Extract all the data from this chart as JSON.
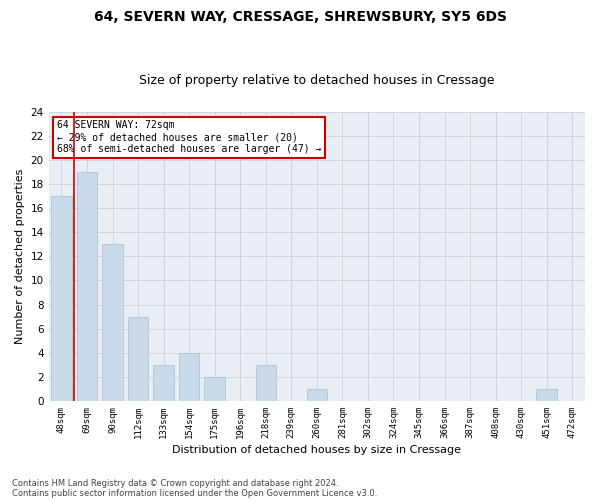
{
  "title": "64, SEVERN WAY, CRESSAGE, SHREWSBURY, SY5 6DS",
  "subtitle": "Size of property relative to detached houses in Cressage",
  "xlabel": "Distribution of detached houses by size in Cressage",
  "ylabel": "Number of detached properties",
  "categories": [
    "48sqm",
    "69sqm",
    "90sqm",
    "112sqm",
    "133sqm",
    "154sqm",
    "175sqm",
    "196sqm",
    "218sqm",
    "239sqm",
    "260sqm",
    "281sqm",
    "302sqm",
    "324sqm",
    "345sqm",
    "366sqm",
    "387sqm",
    "408sqm",
    "430sqm",
    "451sqm",
    "472sqm"
  ],
  "values": [
    17,
    19,
    13,
    7,
    3,
    4,
    2,
    0,
    3,
    0,
    1,
    0,
    0,
    0,
    0,
    0,
    0,
    0,
    0,
    1,
    0
  ],
  "bar_color": "#c9daea",
  "bar_edgecolor": "#a8c0d4",
  "ylim": [
    0,
    24
  ],
  "yticks": [
    0,
    2,
    4,
    6,
    8,
    10,
    12,
    14,
    16,
    18,
    20,
    22,
    24
  ],
  "vline_x": 0.5,
  "vline_color": "#cc0000",
  "property_label": "64 SEVERN WAY: 72sqm",
  "annotation_line1": "← 29% of detached houses are smaller (20)",
  "annotation_line2": "68% of semi-detached houses are larger (47) →",
  "annotation_box_edgecolor": "#cc0000",
  "footer1": "Contains HM Land Registry data © Crown copyright and database right 2024.",
  "footer2": "Contains public sector information licensed under the Open Government Licence v3.0.",
  "title_fontsize": 10,
  "subtitle_fontsize": 9,
  "xlabel_fontsize": 8,
  "ylabel_fontsize": 8,
  "bar_width": 0.8,
  "background_color": "#ffffff",
  "plot_bg_color": "#e8eef4",
  "grid_color": "#cdd6df"
}
